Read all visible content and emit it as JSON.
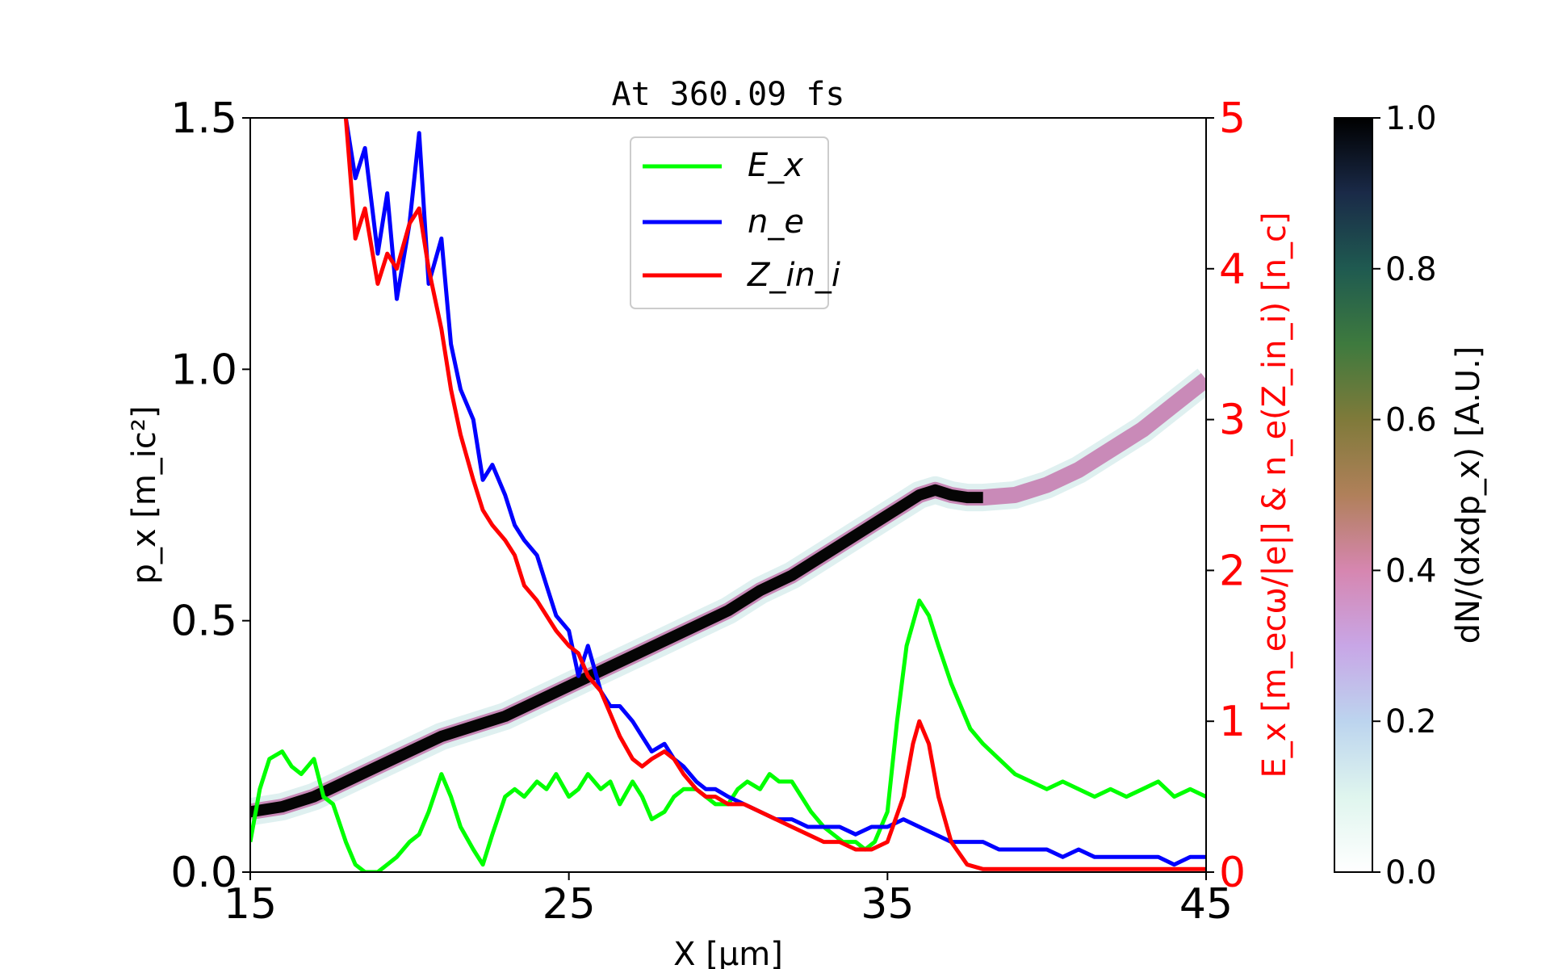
{
  "chart_data": {
    "type": "line",
    "title": "At 360.09 fs",
    "xlabel": "X [μm]",
    "ylabel": "p_x [m_ic²]",
    "y2label": "E_x [m_ecω/|e|] & n_e(Z_in_i) [n_c]",
    "colorbar_label": "dN/(dxdp_x) [A.U.]",
    "xlim": [
      15,
      45
    ],
    "ylim": [
      0,
      1.5
    ],
    "y2lim": [
      0,
      5
    ],
    "clim": [
      0,
      1
    ],
    "x_ticks": [
      "15",
      "25",
      "35",
      "45"
    ],
    "y_ticks": [
      "0.0",
      "0.5",
      "1.0",
      "1.5"
    ],
    "y2_ticks": [
      "0",
      "1",
      "2",
      "3",
      "4",
      "5"
    ],
    "colorbar_ticks": [
      "0.0",
      "0.2",
      "0.4",
      "0.6",
      "0.8",
      "1.0"
    ],
    "legend_position": "upper-center",
    "colors": {
      "Ex": "#00ff00",
      "ne": "#0000ff",
      "Zini": "#ff0000",
      "right_axis": "#ff0000"
    },
    "phase_space": {
      "x": [
        15.0,
        16.0,
        17.0,
        18.0,
        19.0,
        20.0,
        21.0,
        22.0,
        23.0,
        24.0,
        25.0,
        26.0,
        27.0,
        28.0,
        29.0,
        30.0,
        31.0,
        32.0,
        33.0,
        34.0,
        35.0,
        35.5,
        36.0,
        36.5,
        37.0,
        37.5,
        38.0,
        39.0,
        40.0,
        41.0,
        42.0,
        43.0,
        44.0,
        45.0
      ],
      "px": [
        0.12,
        0.13,
        0.15,
        0.18,
        0.21,
        0.24,
        0.27,
        0.29,
        0.31,
        0.34,
        0.37,
        0.4,
        0.43,
        0.46,
        0.49,
        0.52,
        0.56,
        0.59,
        0.63,
        0.67,
        0.71,
        0.73,
        0.75,
        0.76,
        0.75,
        0.745,
        0.745,
        0.75,
        0.77,
        0.8,
        0.84,
        0.88,
        0.93,
        0.98
      ]
    },
    "series": [
      {
        "name": "E_x",
        "axis": "right",
        "x": [
          15.0,
          15.3,
          15.6,
          16.0,
          16.3,
          16.6,
          17.0,
          17.3,
          17.6,
          18.0,
          18.3,
          18.6,
          19.0,
          19.3,
          19.6,
          20.0,
          20.3,
          20.6,
          21.0,
          21.3,
          21.6,
          22.0,
          22.3,
          22.6,
          23.0,
          23.3,
          23.6,
          24.0,
          24.3,
          24.6,
          25.0,
          25.3,
          25.6,
          26.0,
          26.3,
          26.6,
          27.0,
          27.3,
          27.6,
          28.0,
          28.3,
          28.6,
          29.0,
          29.3,
          29.6,
          30.0,
          30.3,
          30.6,
          31.0,
          31.3,
          31.6,
          32.0,
          32.3,
          32.6,
          33.0,
          33.3,
          33.6,
          34.0,
          34.3,
          34.6,
          35.0,
          35.3,
          35.6,
          36.0,
          36.3,
          36.6,
          37.0,
          37.3,
          37.6,
          38.0,
          38.5,
          39.0,
          39.5,
          40.0,
          40.5,
          41.0,
          41.5,
          42.0,
          42.5,
          43.0,
          43.5,
          44.0,
          44.5,
          45.0
        ],
        "values": [
          0.2,
          0.55,
          0.75,
          0.8,
          0.7,
          0.65,
          0.75,
          0.5,
          0.45,
          0.2,
          0.05,
          0.0,
          0.0,
          0.05,
          0.1,
          0.2,
          0.25,
          0.4,
          0.65,
          0.5,
          0.3,
          0.15,
          0.05,
          0.25,
          0.5,
          0.55,
          0.5,
          0.6,
          0.55,
          0.65,
          0.5,
          0.55,
          0.65,
          0.55,
          0.6,
          0.45,
          0.6,
          0.5,
          0.35,
          0.4,
          0.5,
          0.55,
          0.55,
          0.5,
          0.45,
          0.45,
          0.55,
          0.6,
          0.55,
          0.65,
          0.6,
          0.6,
          0.5,
          0.4,
          0.3,
          0.25,
          0.2,
          0.2,
          0.15,
          0.2,
          0.4,
          1.0,
          1.5,
          1.8,
          1.7,
          1.5,
          1.25,
          1.1,
          0.95,
          0.85,
          0.75,
          0.65,
          0.6,
          0.55,
          0.6,
          0.55,
          0.5,
          0.55,
          0.5,
          0.55,
          0.6,
          0.5,
          0.55,
          0.5
        ]
      },
      {
        "name": "n_e",
        "axis": "right",
        "x": [
          18.0,
          18.3,
          18.6,
          19.0,
          19.3,
          19.6,
          20.0,
          20.3,
          20.6,
          21.0,
          21.3,
          21.6,
          22.0,
          22.3,
          22.6,
          23.0,
          23.3,
          23.6,
          24.0,
          24.3,
          24.6,
          25.0,
          25.3,
          25.6,
          26.0,
          26.3,
          26.6,
          27.0,
          27.3,
          27.6,
          28.0,
          28.3,
          28.6,
          29.0,
          29.3,
          29.6,
          30.0,
          30.5,
          31.0,
          31.5,
          32.0,
          32.5,
          33.0,
          33.5,
          34.0,
          34.5,
          35.0,
          35.5,
          36.0,
          36.5,
          37.0,
          37.5,
          38.0,
          38.5,
          39.0,
          39.5,
          40.0,
          40.5,
          41.0,
          41.5,
          42.0,
          42.5,
          43.0,
          43.5,
          44.0,
          44.5,
          45.0
        ],
        "values": [
          5.0,
          4.6,
          4.8,
          4.1,
          4.5,
          3.8,
          4.3,
          4.9,
          3.9,
          4.2,
          3.5,
          3.2,
          3.0,
          2.6,
          2.7,
          2.5,
          2.3,
          2.2,
          2.1,
          1.9,
          1.7,
          1.6,
          1.3,
          1.5,
          1.2,
          1.1,
          1.1,
          1.0,
          0.9,
          0.8,
          0.85,
          0.75,
          0.7,
          0.6,
          0.55,
          0.55,
          0.5,
          0.45,
          0.4,
          0.35,
          0.35,
          0.3,
          0.3,
          0.3,
          0.25,
          0.3,
          0.3,
          0.35,
          0.3,
          0.25,
          0.2,
          0.2,
          0.2,
          0.15,
          0.15,
          0.15,
          0.15,
          0.1,
          0.15,
          0.1,
          0.1,
          0.1,
          0.1,
          0.1,
          0.05,
          0.1,
          0.1
        ]
      },
      {
        "name": "Z_in_i",
        "axis": "right",
        "x": [
          18.0,
          18.3,
          18.6,
          19.0,
          19.3,
          19.6,
          20.0,
          20.3,
          20.6,
          21.0,
          21.3,
          21.6,
          22.0,
          22.3,
          22.6,
          23.0,
          23.3,
          23.6,
          24.0,
          24.3,
          24.6,
          25.0,
          25.3,
          25.6,
          26.0,
          26.3,
          26.6,
          27.0,
          27.3,
          27.6,
          28.0,
          28.3,
          28.6,
          29.0,
          29.3,
          29.6,
          30.0,
          30.5,
          31.0,
          31.5,
          32.0,
          32.5,
          33.0,
          33.5,
          34.0,
          34.5,
          35.0,
          35.5,
          35.8,
          36.0,
          36.3,
          36.6,
          37.0,
          37.5,
          38.0,
          39.0,
          40.0,
          41.0,
          42.0,
          43.0,
          44.0,
          45.0
        ],
        "values": [
          5.0,
          4.2,
          4.4,
          3.9,
          4.1,
          4.0,
          4.3,
          4.4,
          4.0,
          3.6,
          3.2,
          2.9,
          2.6,
          2.4,
          2.3,
          2.2,
          2.1,
          1.9,
          1.8,
          1.7,
          1.6,
          1.5,
          1.45,
          1.3,
          1.2,
          1.05,
          0.9,
          0.75,
          0.7,
          0.75,
          0.8,
          0.75,
          0.65,
          0.55,
          0.5,
          0.5,
          0.45,
          0.45,
          0.4,
          0.35,
          0.3,
          0.25,
          0.2,
          0.2,
          0.15,
          0.15,
          0.2,
          0.5,
          0.85,
          1.0,
          0.85,
          0.5,
          0.2,
          0.05,
          0.02,
          0.02,
          0.02,
          0.02,
          0.02,
          0.02,
          0.02,
          0.02
        ]
      }
    ]
  }
}
